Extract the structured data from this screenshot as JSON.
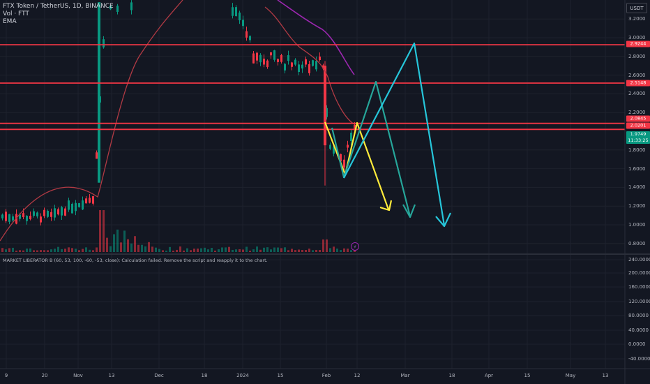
{
  "legend": {
    "symbol": "FTX Token / TetherUS, 1D, BINANCE",
    "volume": "Vol · FTT",
    "ema": "EMA"
  },
  "indicator_status": "MARKET LIBERATOR B (60, 53, 100, -60, -53, close): Calculation failed. Remove the script and reapply it to the chart.",
  "currency": "USDT",
  "price_axis": [
    "3.2000",
    "3.0000",
    "2.8000",
    "2.6000",
    "2.4000",
    "2.2000",
    "1.8000",
    "1.6000",
    "1.4000",
    "1.2000",
    "1.0000",
    "0.8000"
  ],
  "indicator_axis": [
    "240.0000",
    "200.0000",
    "160.0000",
    "120.0000",
    "80.0000",
    "40.0000",
    "0.0000",
    "-40.0000"
  ],
  "time_axis": [
    "9",
    "20",
    "Nov",
    "13",
    "Dec",
    "18",
    "2024",
    "15",
    "Feb",
    "12",
    "Mar",
    "18",
    "Apr",
    "15",
    "May",
    "13"
  ],
  "price_tags": {
    "level_top": "2.9244",
    "level_mid": "2.5148",
    "level_a": "2.0845",
    "level_b": "2.0201",
    "last_price": "1.9749",
    "countdown": "11:33:25"
  },
  "colors": {
    "background": "#131722",
    "up": "#089981",
    "down": "#f23645",
    "ema": "#b13a44",
    "ema_long": "#9c27b0",
    "line_red": "#f23645",
    "arrow_yellow": "#ffeb3b",
    "arrow_green": "#26a69a",
    "arrow_blue": "#26c6da"
  },
  "chart_data": {
    "type": "candlestick",
    "symbol": "FTX Token / TetherUS",
    "interval": "1D",
    "exchange": "BINANCE",
    "horizontal_levels": [
      2.9244,
      2.5148,
      2.0845,
      2.0201
    ],
    "last_price": 1.9749,
    "y_range": [
      0.7,
      3.4
    ],
    "indicator_range": [
      -40,
      240
    ],
    "projections": [
      {
        "color": "yellow",
        "points": [
          [
            2.07,
            1.55
          ],
          [
            2.07,
            1.22
          ]
        ]
      },
      {
        "color": "green",
        "points": [
          [
            1.55,
            2.53,
            1.1
          ]
        ]
      },
      {
        "color": "blue",
        "points": [
          [
            1.52,
            2.94,
            1.0
          ]
        ]
      }
    ]
  }
}
